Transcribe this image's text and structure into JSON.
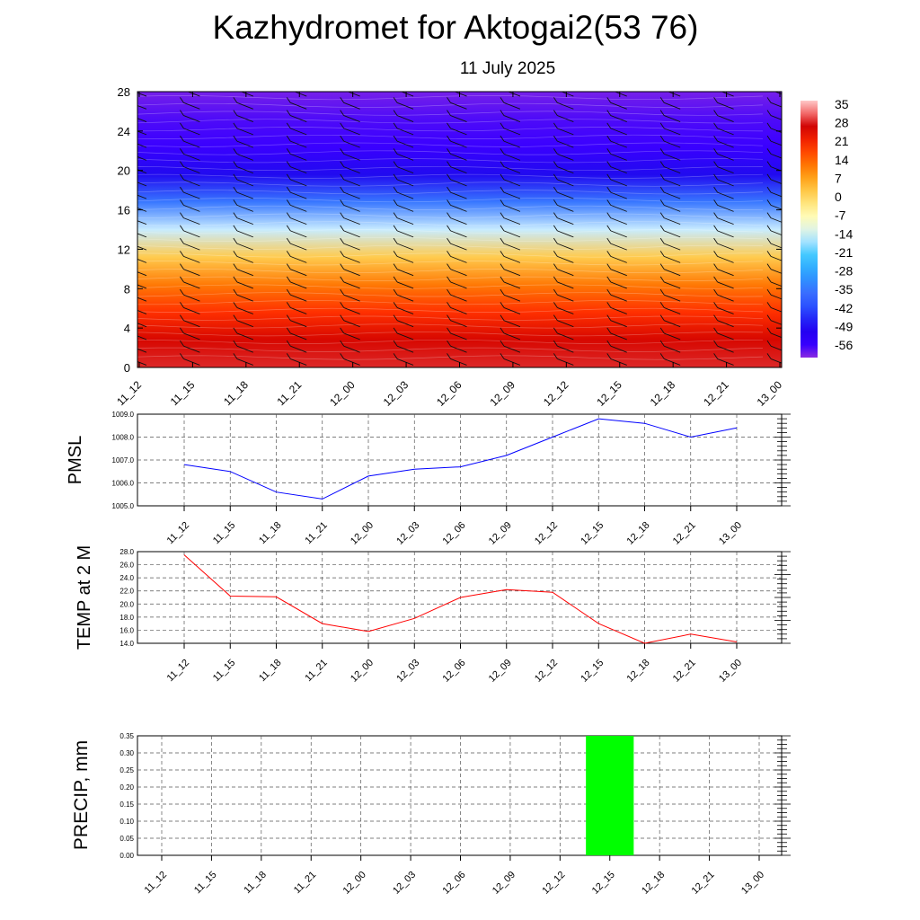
{
  "header": {
    "title": "Kazhydromet for Aktogai2(53 76)",
    "date": "11 July 2025"
  },
  "time_labels": [
    "11_12",
    "11_15",
    "11_18",
    "11_21",
    "12_00",
    "12_03",
    "12_06",
    "12_09",
    "12_12",
    "12_15",
    "12_18",
    "12_21",
    "13_00"
  ],
  "chart_data": [
    {
      "type": "heatmap",
      "id": "vertical_profile",
      "y_ticks": [
        "0",
        "4",
        "8",
        "12",
        "16",
        "20",
        "24",
        "28"
      ],
      "ylim": [
        0,
        28
      ],
      "x_ticks": [
        "11_12",
        "11_15",
        "11_18",
        "11_21",
        "12_00",
        "12_03",
        "12_06",
        "12_09",
        "12_12",
        "12_15",
        "12_18",
        "12_21",
        "13_00"
      ],
      "colorbar_labels": [
        "35",
        "28",
        "21",
        "14",
        "7",
        "0",
        "-7",
        "-14",
        "-21",
        "-28",
        "-35",
        "-42",
        "-49",
        "-56"
      ],
      "colorbar_range": [
        -60,
        38
      ],
      "level_temperatures": [
        30,
        27,
        21,
        13,
        3,
        -14,
        -34,
        -48,
        -56,
        -57,
        -59
      ],
      "colors": {
        "warm": "#c80000",
        "mid": "#ff8c00",
        "neutral": "#ffffb0",
        "cool": "#28b4ff",
        "cold": "#2040ff",
        "coldest": "#2000e0"
      }
    },
    {
      "type": "line",
      "id": "pmsl",
      "ylabel": "PMSL",
      "x": [
        "11_12",
        "11_15",
        "11_18",
        "11_21",
        "12_00",
        "12_03",
        "12_06",
        "12_09",
        "12_12",
        "12_15",
        "12_18",
        "12_21",
        "13_00"
      ],
      "y_ticks": [
        "1005.0",
        "1006.0",
        "1007.0",
        "1008.0",
        "1009.0"
      ],
      "ylim": [
        1005.0,
        1009.0
      ],
      "series": [
        {
          "values": [
            1006.8,
            1006.5,
            1005.6,
            1005.3,
            1006.3,
            1006.6,
            1006.7,
            1007.2,
            1008.0,
            1008.8,
            1008.6,
            1008.0,
            1008.4
          ]
        }
      ],
      "color": "#0000ff"
    },
    {
      "type": "line",
      "id": "temp2m",
      "ylabel": "TEMP at 2 M",
      "x": [
        "11_12",
        "11_15",
        "11_18",
        "11_21",
        "12_00",
        "12_03",
        "12_06",
        "12_09",
        "12_12",
        "12_15",
        "12_18",
        "12_21",
        "13_00"
      ],
      "y_ticks": [
        "14.0",
        "16.0",
        "18.0",
        "20.0",
        "22.0",
        "24.0",
        "26.0",
        "28.0"
      ],
      "ylim": [
        14.0,
        28.0
      ],
      "series": [
        {
          "values": [
            27.5,
            21.2,
            21.1,
            17.0,
            15.8,
            17.8,
            21.0,
            22.2,
            21.8,
            17.0,
            14.0,
            15.4,
            14.2
          ]
        }
      ],
      "color": "#ff0000"
    },
    {
      "type": "bar",
      "id": "precip",
      "ylabel": "PRECIP, mm",
      "categories": [
        "11_12",
        "11_15",
        "11_18",
        "11_21",
        "12_00",
        "12_03",
        "12_06",
        "12_09",
        "12_12",
        "12_15",
        "12_18",
        "12_21",
        "13_00"
      ],
      "y_ticks": [
        "0.00",
        "0.05",
        "0.10",
        "0.15",
        "0.20",
        "0.25",
        "0.30",
        "0.35"
      ],
      "ylim": [
        0,
        0.35
      ],
      "values": [
        0,
        0,
        0,
        0,
        0,
        0,
        0,
        0,
        0,
        0.35,
        0,
        0,
        0
      ],
      "color": "#00ff00"
    }
  ]
}
